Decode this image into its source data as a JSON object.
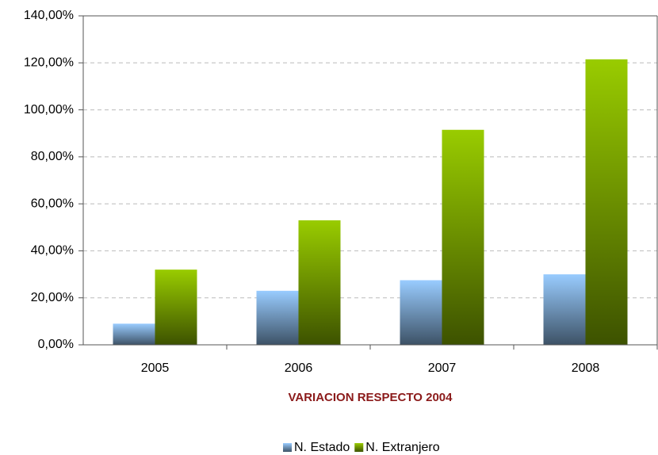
{
  "chart_data": {
    "type": "bar",
    "xlabel": "VARIACION RESPECTO 2004",
    "categories": [
      "2005",
      "2006",
      "2007",
      "2008"
    ],
    "series": [
      {
        "name": "N. Estado",
        "color": "#99ccff",
        "values": [
          9,
          23,
          27.5,
          30
        ]
      },
      {
        "name": "N. Extranjero",
        "color": "#99cc00",
        "values": [
          32,
          53,
          91.5,
          121.5
        ]
      }
    ],
    "ylim": [
      0,
      140
    ],
    "yticks": [
      {
        "value": 0,
        "label": "0,00%"
      },
      {
        "value": 20,
        "label": "20,00%"
      },
      {
        "value": 40,
        "label": "40,00%"
      },
      {
        "value": 60,
        "label": "60,00%"
      },
      {
        "value": 80,
        "label": "80,00%"
      },
      {
        "value": 100,
        "label": "100,00%"
      },
      {
        "value": 120,
        "label": "120,00%"
      },
      {
        "value": 140,
        "label": "140,00%"
      }
    ],
    "grid": true,
    "legend": "bottom"
  }
}
